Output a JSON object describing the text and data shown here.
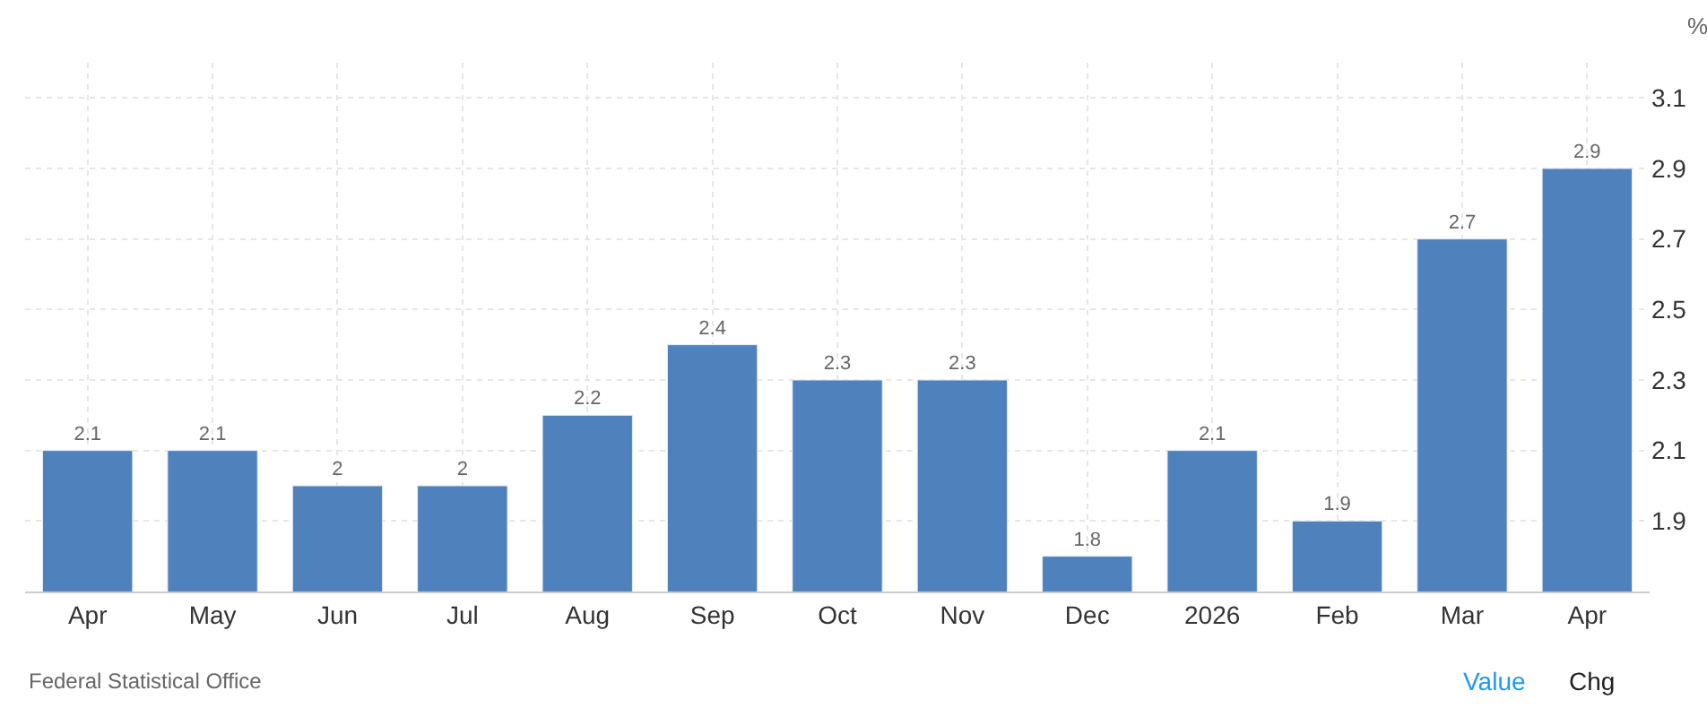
{
  "chart_data": {
    "type": "bar",
    "ylabel": "%",
    "categories": [
      "Apr",
      "May",
      "Jun",
      "Jul",
      "Aug",
      "Sep",
      "Oct",
      "Nov",
      "Dec",
      "2026",
      "Feb",
      "Mar",
      "Apr"
    ],
    "values": [
      2.1,
      2.1,
      2,
      2,
      2.2,
      2.4,
      2.3,
      2.3,
      1.8,
      2.1,
      1.9,
      2.7,
      2.9
    ],
    "color": "#4f81bd",
    "data_labels": true,
    "ylim": [
      1.7,
      3.2
    ],
    "yticks": [
      1.9,
      2.1,
      2.3,
      2.5,
      2.7,
      2.9,
      3.1
    ],
    "grid": true,
    "legend": false,
    "annotations": [
      "Federal Statistical Office",
      "Value",
      "Chg"
    ]
  }
}
